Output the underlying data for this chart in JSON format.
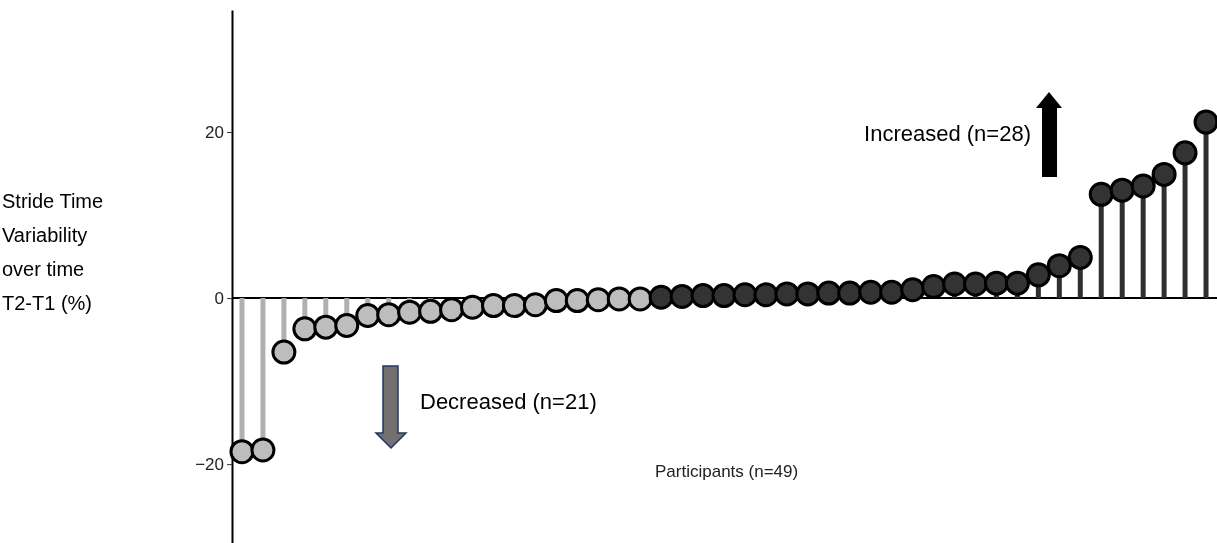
{
  "chart_data": {
    "type": "lollipop",
    "xlabel": "Participants (n=49)",
    "ylabel": "Stride Time\nVariability\nover time\nT2-T1 (%)",
    "categories": [
      null,
      null,
      null,
      null,
      null,
      null,
      null,
      null,
      null,
      null,
      null,
      null,
      null,
      null,
      null,
      null,
      null,
      null,
      null,
      null,
      null,
      null,
      null,
      null,
      null,
      null,
      null,
      null,
      null,
      null,
      null,
      null,
      null,
      null,
      null,
      null,
      null,
      null,
      null,
      null,
      null,
      null,
      null,
      null,
      null,
      null,
      null
    ],
    "values": [
      -18.5,
      -18.3,
      -6.5,
      -3.7,
      -3.5,
      -3.3,
      -2.1,
      -2.0,
      -1.7,
      -1.6,
      -1.4,
      -1.1,
      -0.9,
      -0.9,
      -0.8,
      -0.3,
      -0.3,
      -0.2,
      -0.1,
      -0.1,
      0.1,
      0.2,
      0.3,
      0.3,
      0.4,
      0.4,
      0.5,
      0.5,
      0.6,
      0.6,
      0.7,
      0.7,
      1.0,
      1.4,
      1.7,
      1.7,
      1.8,
      1.8,
      2.8,
      3.9,
      4.9,
      12.5,
      13.0,
      13.5,
      14.9,
      17.5,
      21.2
    ],
    "colors": [
      "#bdbdbd",
      "#bdbdbd",
      "#bdbdbd",
      "#bdbdbd",
      "#bdbdbd",
      "#bdbdbd",
      "#bdbdbd",
      "#bdbdbd",
      "#bdbdbd",
      "#bdbdbd",
      "#bdbdbd",
      "#bdbdbd",
      "#bdbdbd",
      "#bdbdbd",
      "#bdbdbd",
      "#bdbdbd",
      "#bdbdbd",
      "#bdbdbd",
      "#bdbdbd",
      "#bdbdbd",
      "#333333",
      "#333333",
      "#333333",
      "#333333",
      "#333333",
      "#333333",
      "#333333",
      "#333333",
      "#333333",
      "#333333",
      "#333333",
      "#333333",
      "#333333",
      "#333333",
      "#333333",
      "#333333",
      "#333333",
      "#333333",
      "#333333",
      "#333333",
      "#333333",
      "#333333",
      "#333333",
      "#333333",
      "#333333",
      "#333333",
      "#333333"
    ],
    "ylim": [
      -29.5,
      34.7
    ],
    "yticks": [
      {
        "value": -20,
        "label": "−20"
      },
      0,
      20
    ],
    "annotations": [
      "Increased (n=28)",
      "Decreased (n=21)"
    ],
    "marker": "circle"
  }
}
